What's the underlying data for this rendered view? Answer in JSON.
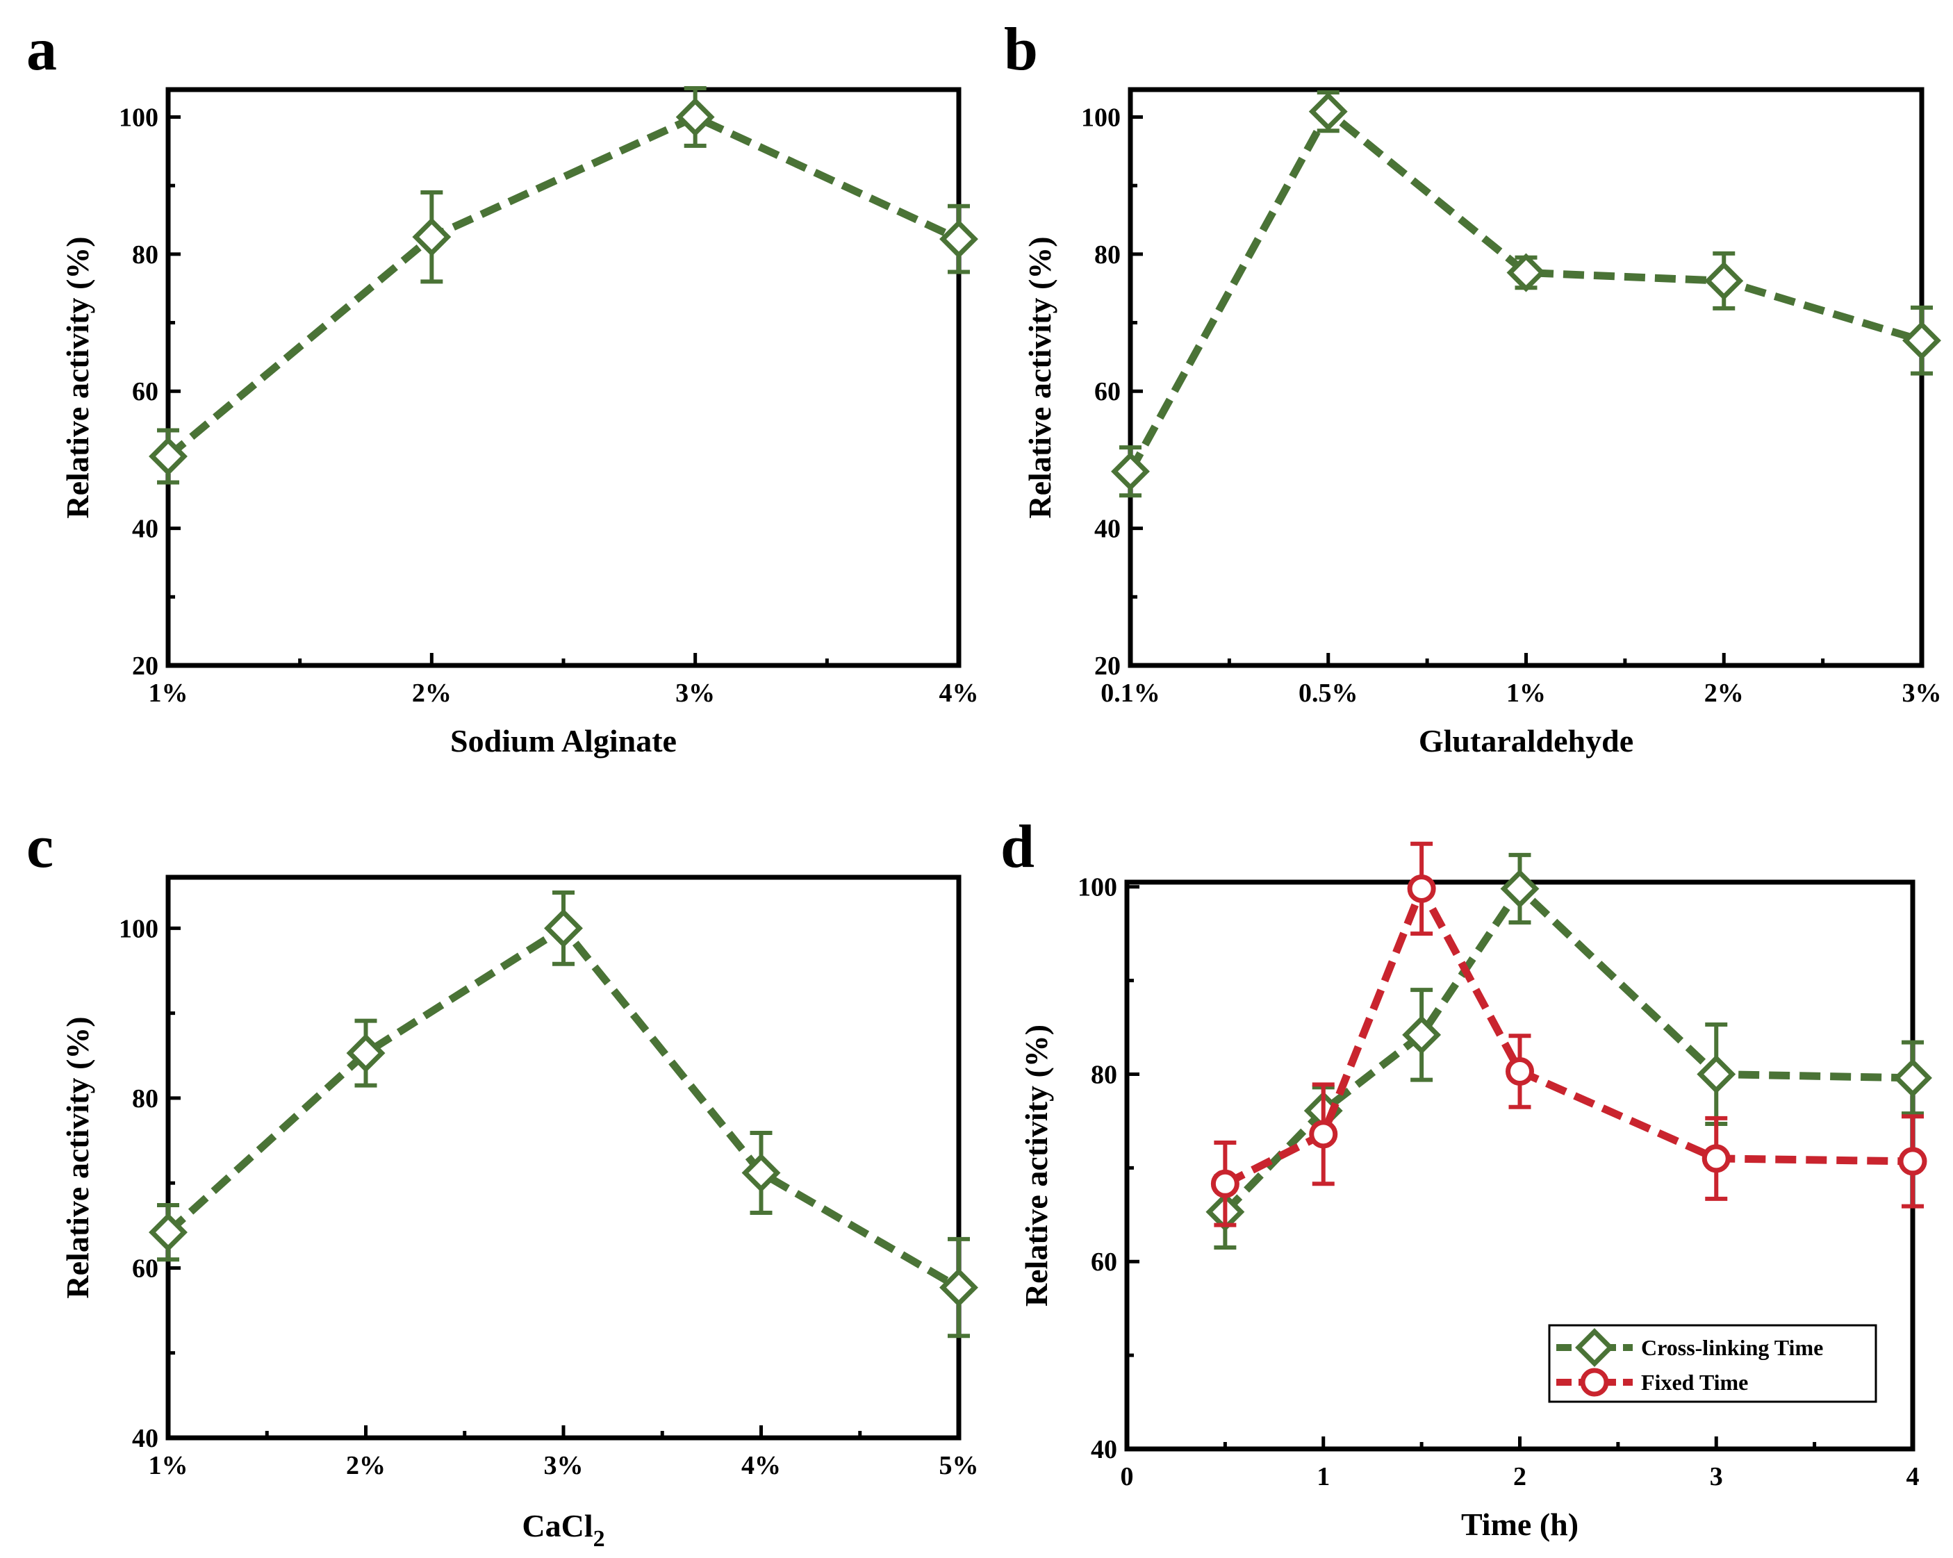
{
  "colors": {
    "green": "#4a7336",
    "red": "#c9242e",
    "axis": "#000000"
  },
  "chart_data": [
    {
      "panel_label": "a",
      "type": "line",
      "categories": [
        "1%",
        "2%",
        "3%",
        "4%"
      ],
      "series": [
        {
          "name": "",
          "marker": "diamond",
          "color": "#4a7336",
          "values": [
            50.5,
            82.5,
            100,
            82.2
          ],
          "errors": [
            3.8,
            6.5,
            4.2,
            4.8
          ]
        }
      ],
      "xlabel": "Sodium Alginate",
      "ylabel": "Relative activity (%)",
      "ylim": [
        20,
        104
      ],
      "yticks": [
        20,
        40,
        60,
        80,
        100
      ],
      "legend": null
    },
    {
      "panel_label": "b",
      "type": "line",
      "categories": [
        "0.1%",
        "0.5%",
        "1%",
        "2%",
        "3%"
      ],
      "series": [
        {
          "name": "",
          "marker": "diamond",
          "color": "#4a7336",
          "values": [
            48.3,
            100.8,
            77.3,
            76.1,
            67.4
          ],
          "errors": [
            3.5,
            2.8,
            2.2,
            4.0,
            4.8
          ]
        }
      ],
      "xlabel": "Glutaraldehyde",
      "ylabel": "Relative activity (%)",
      "ylim": [
        20,
        104
      ],
      "yticks": [
        20,
        40,
        60,
        80,
        100
      ],
      "legend": null
    },
    {
      "panel_label": "c",
      "type": "line",
      "categories": [
        "1%",
        "2%",
        "3%",
        "4%",
        "5%"
      ],
      "series": [
        {
          "name": "",
          "marker": "diamond",
          "color": "#4a7336",
          "values": [
            64.2,
            85.3,
            100,
            71.2,
            57.7
          ],
          "errors": [
            3.2,
            3.8,
            4.2,
            4.7,
            5.7
          ]
        }
      ],
      "xlabel": "CaCl",
      "xlabel_sub": "2",
      "ylabel": "Relative activity (%)",
      "ylim": [
        40,
        106
      ],
      "yticks": [
        40,
        60,
        80,
        100
      ],
      "legend": null
    },
    {
      "panel_label": "d",
      "type": "line",
      "x": [
        0.5,
        1,
        1.5,
        2,
        3,
        4
      ],
      "xlim": [
        0,
        4
      ],
      "xticks": [
        0,
        1,
        2,
        3,
        4
      ],
      "series": [
        {
          "name": "Cross-linking Time",
          "marker": "diamond",
          "color": "#4a7336",
          "values": [
            65.3,
            76.1,
            84.2,
            99.8,
            80.0,
            79.6
          ],
          "errors": [
            3.8,
            2.5,
            4.8,
            3.6,
            5.3,
            3.8
          ]
        },
        {
          "name": "Fixed Time",
          "marker": "circle",
          "color": "#c9242e",
          "values": [
            68.3,
            73.6,
            99.8,
            80.3,
            71.0,
            70.7
          ],
          "errors": [
            4.4,
            5.3,
            4.8,
            3.8,
            4.3,
            4.8
          ]
        }
      ],
      "xlabel": "Time (h)",
      "ylabel": "Relative activity (%)",
      "ylim": [
        40,
        100.5
      ],
      "yticks": [
        40,
        60,
        80,
        100
      ],
      "legend": {
        "position": "bottom-right",
        "entries": [
          "Cross-linking Time",
          "Fixed Time"
        ]
      }
    }
  ]
}
